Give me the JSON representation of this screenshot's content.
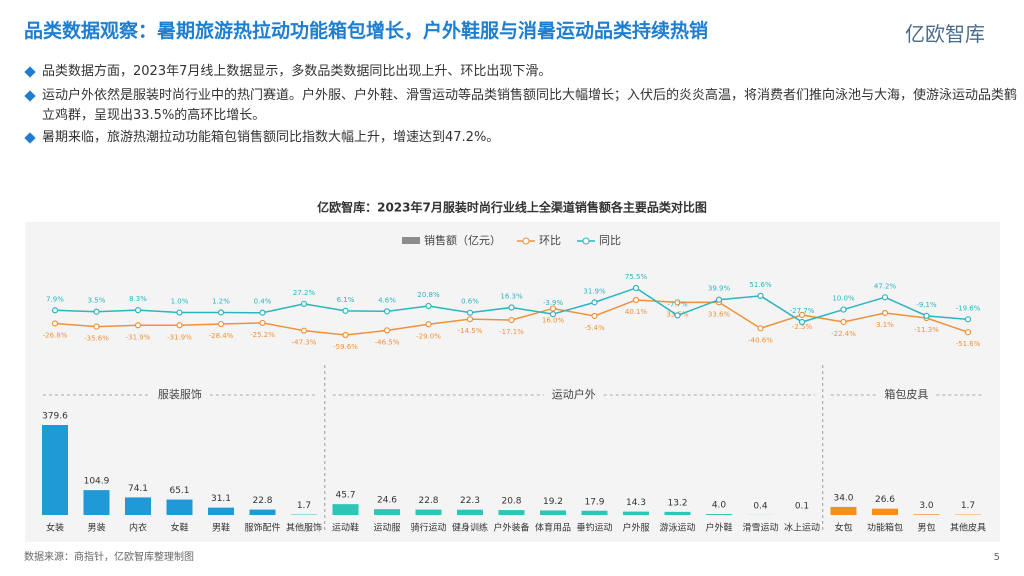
{
  "header": {
    "title": "品类数据观察：暑期旅游热拉动功能箱包增长，户外鞋服与消暑运动品类持续热销",
    "logo": "亿欧智库"
  },
  "bullets": [
    "品类数据方面，2023年7月线上数据显示，多数品类数据同比出现上升、环比出现下滑。",
    "运动户外依然是服装时尚行业中的热门赛道。户外服、户外鞋、滑雪运动等品类销售额同比大幅增长；入伏后的炎炎高温，将消费者们推向泳池与大海，使游泳运动品类鹤立鸡群，呈现出33.5%的高环比增长。",
    "暑期来临，旅游热潮拉动功能箱包销售额同比指数大幅上升，增速达到47.2%。"
  ],
  "chart_data": {
    "type": "bar-line",
    "title": "亿欧智库：2023年7月服装时尚行业线上全渠道销售额各主要品类对比图",
    "categories": [
      "女装",
      "男装",
      "内衣",
      "女鞋",
      "男鞋",
      "服饰配件",
      "其他服饰",
      "运动鞋",
      "运动服",
      "骑行运动",
      "健身训练",
      "户外装备",
      "体育用品",
      "垂钓运动",
      "户外服",
      "游泳运动",
      "户外鞋",
      "滑雪运动",
      "冰上运动",
      "女包",
      "功能箱包",
      "男包",
      "其他皮具"
    ],
    "groups": [
      "服装服饰",
      "运动户外",
      "箱包皮具"
    ],
    "series": [
      {
        "name": "销售额（亿元）",
        "type": "bar",
        "legend_color": "#8c8c8c",
        "colors": [
          "#1f9ad6",
          "#1f9ad6",
          "#1f9ad6",
          "#1f9ad6",
          "#1f9ad6",
          "#1f9ad6",
          "#1f9ad6",
          "#2ec4b6",
          "#2ec4b6",
          "#2ec4b6",
          "#2ec4b6",
          "#2ec4b6",
          "#2ec4b6",
          "#2ec4b6",
          "#2ec4b6",
          "#2ec4b6",
          "#2ec4b6",
          "#2ec4b6",
          "#2ec4b6",
          "#f5901e",
          "#f5901e",
          "#f5901e",
          "#f5901e"
        ],
        "values": [
          379.6,
          104.9,
          74.1,
          65.1,
          31.1,
          22.8,
          1.7,
          45.7,
          24.6,
          22.8,
          22.3,
          20.8,
          19.2,
          17.9,
          14.3,
          13.2,
          4.0,
          0.4,
          0.1,
          34.0,
          26.6,
          3.0,
          1.7
        ],
        "value_labels": [
          "379.6",
          "104.9",
          "74.1",
          "65.1",
          "31.1",
          "22.8",
          "1.7",
          "45.7",
          "24.6",
          "22.8",
          "22.3",
          "20.8",
          "19.2",
          "17.9",
          "14.3",
          "13.2",
          "4.0",
          "0.4",
          "0.1",
          "34.0",
          "26.6",
          "3.0",
          "1.7"
        ]
      },
      {
        "name": "环比",
        "type": "line",
        "color": "#f0913a",
        "values": [
          -26.8,
          -35.6,
          -31.9,
          -31.9,
          -28.4,
          -25.2,
          -47.3,
          -59.6,
          -46.5,
          -29.0,
          -14.5,
          -17.1,
          16.0,
          -5.4,
          40.1,
          33.5,
          33.6,
          -40.6,
          -2.5,
          -22.4,
          3.1,
          -11.3,
          -51.6
        ],
        "value_labels": [
          "-26.8%",
          "-35.6%",
          "-31.9%",
          "-31.9%",
          "-28.4%",
          "-25.2%",
          "-47.3%",
          "-59.6%",
          "-46.5%",
          "-29.0%",
          "-14.5%",
          "-17.1%",
          "16.0%",
          "-5.4%",
          "40.1%",
          "33.5%",
          "33.6%",
          "-40.6%",
          "-2.5%",
          "-22.4%",
          "3.1%",
          "-11.3%",
          "-51.6%"
        ]
      },
      {
        "name": "同比",
        "type": "line",
        "color": "#2bb5c0",
        "values": [
          7.9,
          3.5,
          8.3,
          1.0,
          1.2,
          0.4,
          27.2,
          6.1,
          4.6,
          20.8,
          0.6,
          16.3,
          -3.9,
          31.9,
          75.5,
          -7.7,
          39.9,
          51.6,
          -27.7,
          10.0,
          47.2,
          -9.1,
          -19.6
        ],
        "value_labels": [
          "7.9%",
          "3.5%",
          "8.3%",
          "1.0%",
          "1.2%",
          "0.4%",
          "27.2%",
          "6.1%",
          "4.6%",
          "20.8%",
          "0.6%",
          "16.3%",
          "-3.9%",
          "31.9%",
          "75.5%",
          "-7.7%",
          "39.9%",
          "51.6%",
          "-27.7%",
          "10.0%",
          "47.2%",
          "-9.1%",
          "-19.6%"
        ]
      }
    ]
  },
  "footer": {
    "source": "数据来源：商指针，亿欧智库整理制图",
    "page": "5"
  }
}
